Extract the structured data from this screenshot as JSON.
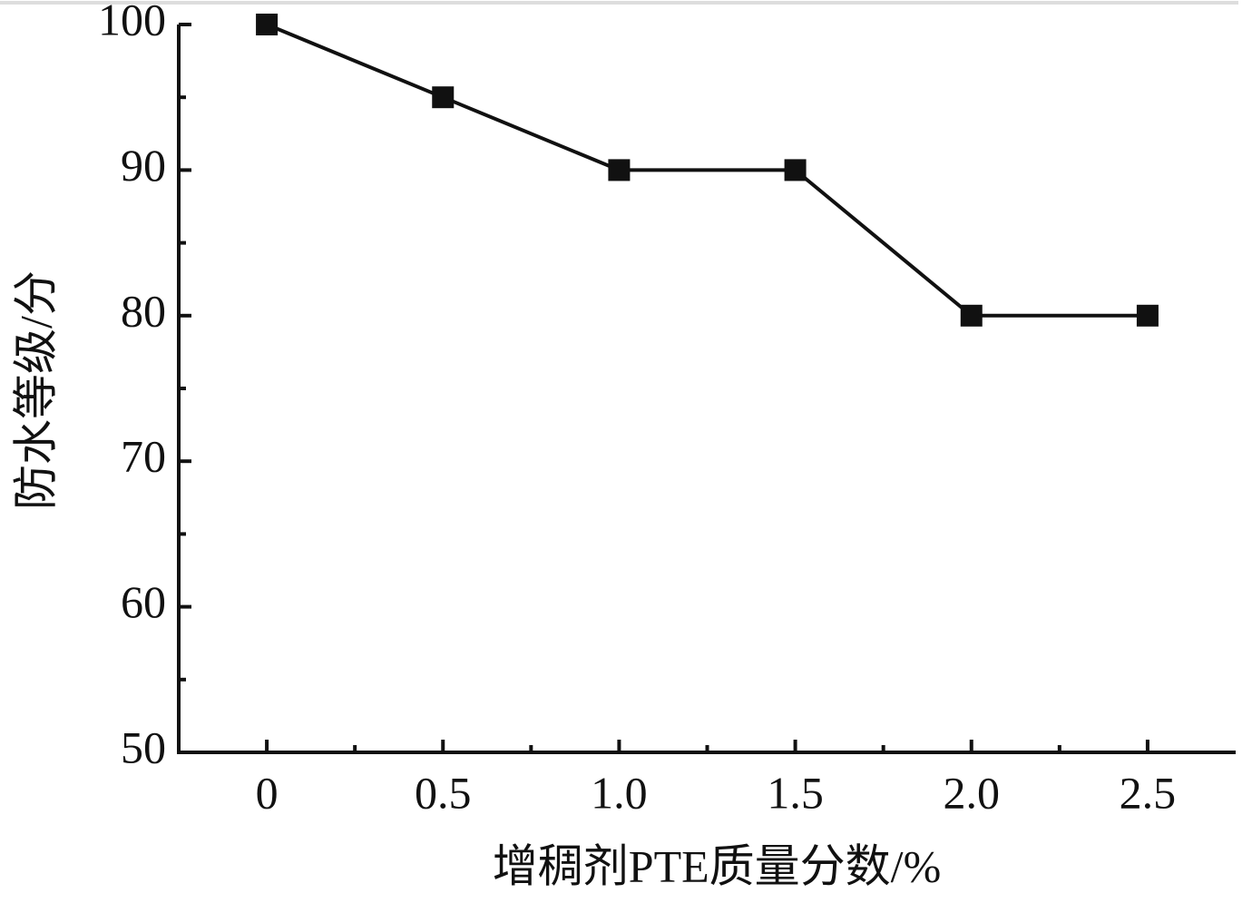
{
  "chart_data": {
    "type": "line",
    "x_label": "增稠剂PTE质量分数/%",
    "y_label": "防水等级/分",
    "x": [
      0,
      0.5,
      1.0,
      1.5,
      2.0,
      2.5
    ],
    "series": [
      {
        "color": "#111111",
        "values": [
          100,
          95,
          90,
          90,
          80,
          80
        ]
      }
    ],
    "xlim": [
      -0.25,
      2.75
    ],
    "xticks": [
      0,
      0.5,
      {
        "value": 1,
        "label": "1.0"
      },
      1.5,
      {
        "value": 2,
        "label": "2.0"
      },
      2.5
    ],
    "ylim": [
      50,
      100
    ],
    "yticks": [
      50,
      60,
      70,
      80,
      90,
      100
    ],
    "marker": "square"
  }
}
